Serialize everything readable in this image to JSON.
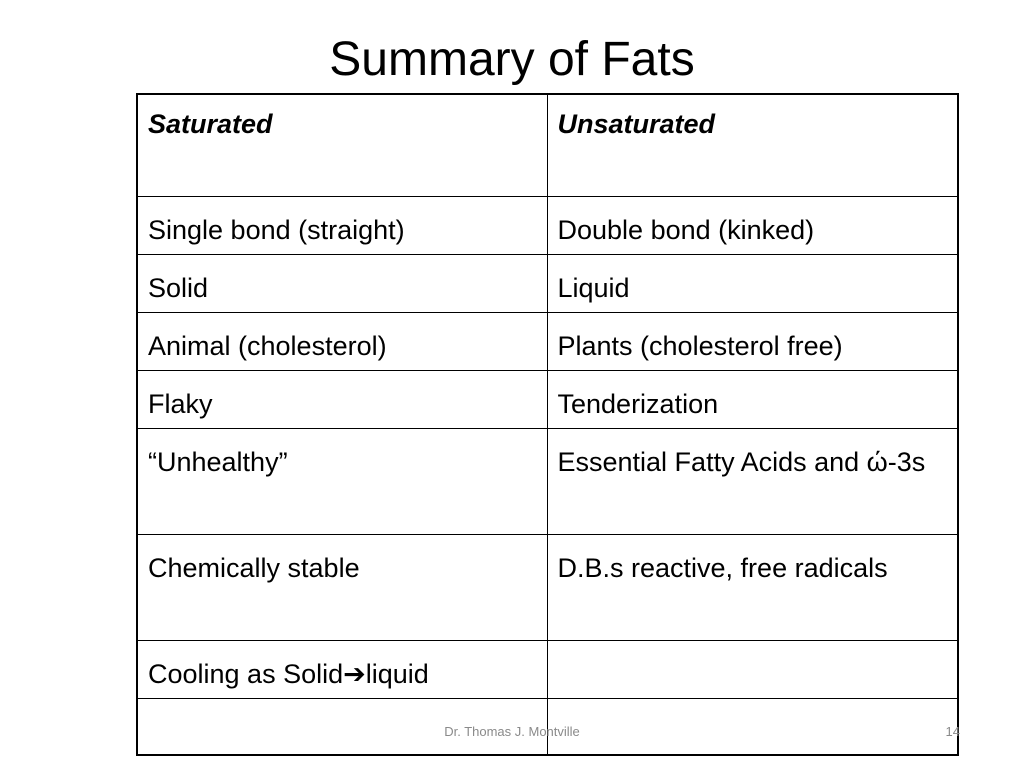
{
  "title": "Summary of Fats",
  "table": {
    "header": [
      "Saturated",
      "Unsaturated"
    ],
    "rows": [
      [
        "Single bond (straight)",
        "Double bond (kinked)"
      ],
      [
        "Solid",
        "Liquid"
      ],
      [
        "Animal (cholesterol)",
        "Plants (cholesterol free)"
      ],
      [
        "Flaky",
        "Tenderization"
      ],
      [
        "“Unhealthy”",
        "Essential Fatty Acids and ώ-3s"
      ],
      [
        "Chemically stable",
        "D.B.s reactive, free radicals"
      ],
      [
        "Cooling as Solid➔liquid"
      ]
    ]
  },
  "footer": {
    "author": "Dr. Thomas J. Montville",
    "page": "14"
  }
}
